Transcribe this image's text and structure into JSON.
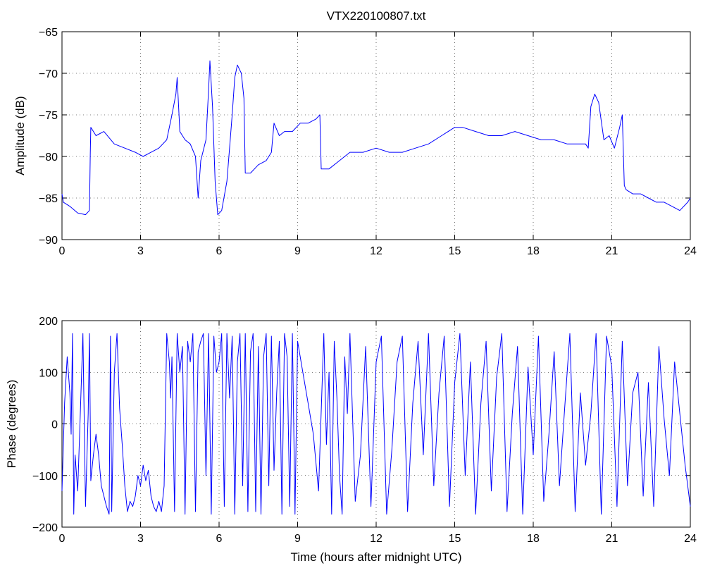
{
  "chart_data": [
    {
      "type": "line",
      "title": "VTX220100807.txt",
      "xlabel": "",
      "ylabel": "Amplitude (dB)",
      "xlim": [
        0,
        24
      ],
      "ylim": [
        -90,
        -65
      ],
      "xticks": [
        0,
        3,
        6,
        9,
        12,
        15,
        18,
        21,
        24
      ],
      "yticks": [
        -90,
        -85,
        -80,
        -75,
        -70,
        -65
      ],
      "grid": true,
      "series": [
        {
          "color": "#0000ff",
          "x": [
            0,
            0.05,
            0.3,
            0.6,
            0.9,
            1.05,
            1.08,
            1.1,
            1.3,
            1.6,
            2.0,
            2.4,
            2.8,
            3.1,
            3.4,
            3.7,
            4.0,
            4.2,
            4.35,
            4.4,
            4.5,
            4.7,
            4.9,
            5.1,
            5.2,
            5.3,
            5.5,
            5.6,
            5.65,
            5.75,
            5.85,
            5.95,
            6.1,
            6.3,
            6.4,
            6.5,
            6.6,
            6.7,
            6.85,
            6.95,
            7.0,
            7.2,
            7.5,
            7.8,
            8.0,
            8.1,
            8.3,
            8.5,
            8.8,
            9.1,
            9.4,
            9.7,
            9.85,
            9.9,
            10.2,
            10.6,
            11.0,
            11.5,
            12.0,
            12.5,
            13.0,
            13.5,
            14.0,
            14.5,
            15.0,
            15.3,
            15.8,
            16.3,
            16.8,
            17.3,
            17.8,
            18.3,
            18.8,
            19.3,
            19.8,
            20.0,
            20.1,
            20.2,
            20.35,
            20.5,
            20.7,
            20.9,
            21.1,
            21.3,
            21.4,
            21.48,
            21.55,
            21.8,
            22.1,
            22.4,
            22.7,
            23.0,
            23.3,
            23.6,
            23.9,
            24.0
          ],
          "y": [
            -84.5,
            -85.5,
            -86.0,
            -86.8,
            -87.0,
            -86.5,
            -80.0,
            -76.5,
            -77.5,
            -77.0,
            -78.5,
            -79.0,
            -79.5,
            -80.0,
            -79.5,
            -79.0,
            -78.0,
            -75.0,
            -72.5,
            -70.5,
            -77.0,
            -78.0,
            -78.5,
            -80.0,
            -85.0,
            -80.5,
            -78.0,
            -72.0,
            -68.5,
            -74.0,
            -83.0,
            -87.0,
            -86.5,
            -83.0,
            -79.0,
            -75.0,
            -70.5,
            -69.0,
            -70.0,
            -73.0,
            -82.0,
            -82.0,
            -81.0,
            -80.5,
            -79.5,
            -76.0,
            -77.5,
            -77.0,
            -77.0,
            -76.0,
            -76.0,
            -75.5,
            -75.0,
            -81.5,
            -81.5,
            -80.5,
            -79.5,
            -79.5,
            -79.0,
            -79.5,
            -79.5,
            -79.0,
            -78.5,
            -77.5,
            -76.5,
            -76.5,
            -77.0,
            -77.5,
            -77.5,
            -77.0,
            -77.5,
            -78.0,
            -78.0,
            -78.5,
            -78.5,
            -78.5,
            -79.0,
            -74.0,
            -72.5,
            -73.5,
            -78.0,
            -77.5,
            -79.0,
            -76.5,
            -75.0,
            -83.5,
            -84.0,
            -84.5,
            -84.5,
            -85.0,
            -85.5,
            -85.5,
            -86.0,
            -86.5,
            -85.5,
            -85.0
          ]
        }
      ]
    },
    {
      "type": "line",
      "title": "",
      "xlabel": "Time (hours after midnight UTC)",
      "ylabel": "Phase (degrees)",
      "xlim": [
        0,
        24
      ],
      "ylim": [
        -200,
        200
      ],
      "xticks": [
        0,
        3,
        6,
        9,
        12,
        15,
        18,
        21,
        24
      ],
      "yticks": [
        -200,
        -100,
        0,
        100,
        200
      ],
      "grid": true,
      "series": [
        {
          "color": "#0000ff",
          "x": [
            0,
            0.1,
            0.2,
            0.3,
            0.35,
            0.4,
            0.45,
            0.5,
            0.6,
            0.7,
            0.8,
            0.9,
            1.0,
            1.05,
            1.1,
            1.2,
            1.3,
            1.4,
            1.5,
            1.6,
            1.7,
            1.8,
            1.85,
            1.9,
            2.0,
            2.1,
            2.2,
            2.3,
            2.4,
            2.5,
            2.6,
            2.7,
            2.8,
            2.9,
            3.0,
            3.1,
            3.2,
            3.3,
            3.4,
            3.5,
            3.6,
            3.7,
            3.8,
            3.9,
            4.0,
            4.1,
            4.15,
            4.2,
            4.3,
            4.4,
            4.5,
            4.6,
            4.7,
            4.8,
            4.9,
            5.0,
            5.1,
            5.2,
            5.3,
            5.4,
            5.5,
            5.6,
            5.7,
            5.8,
            5.9,
            6.0,
            6.1,
            6.2,
            6.3,
            6.4,
            6.5,
            6.6,
            6.7,
            6.8,
            6.9,
            7.0,
            7.1,
            7.2,
            7.3,
            7.4,
            7.5,
            7.6,
            7.7,
            7.8,
            7.9,
            8.0,
            8.1,
            8.2,
            8.3,
            8.4,
            8.5,
            8.6,
            8.7,
            8.8,
            8.9,
            9.0,
            9.2,
            9.4,
            9.6,
            9.8,
            10.0,
            10.1,
            10.2,
            10.3,
            10.4,
            10.5,
            10.6,
            10.7,
            10.8,
            10.9,
            11.0,
            11.2,
            11.4,
            11.6,
            11.8,
            12.0,
            12.2,
            12.4,
            12.6,
            12.8,
            13.0,
            13.2,
            13.4,
            13.6,
            13.8,
            14.0,
            14.2,
            14.4,
            14.6,
            14.8,
            15.0,
            15.2,
            15.4,
            15.6,
            15.8,
            16.0,
            16.2,
            16.4,
            16.6,
            16.8,
            17.0,
            17.2,
            17.4,
            17.6,
            17.8,
            18.0,
            18.2,
            18.4,
            18.6,
            18.8,
            19.0,
            19.2,
            19.4,
            19.6,
            19.8,
            20.0,
            20.2,
            20.4,
            20.6,
            20.8,
            21.0,
            21.2,
            21.4,
            21.6,
            21.8,
            22.0,
            22.2,
            22.4,
            22.6,
            22.8,
            23.0,
            23.2,
            23.4,
            23.6,
            23.8,
            24.0
          ],
          "y": [
            -130,
            40,
            130,
            60,
            -20,
            175,
            -175,
            -60,
            -130,
            20,
            175,
            -160,
            20,
            175,
            -110,
            -60,
            -20,
            -60,
            -120,
            -140,
            -160,
            -175,
            170,
            -170,
            100,
            175,
            30,
            -40,
            -120,
            -170,
            -150,
            -160,
            -140,
            -100,
            -120,
            -80,
            -110,
            -90,
            -140,
            -160,
            -170,
            -150,
            -170,
            -120,
            175,
            120,
            50,
            130,
            -170,
            175,
            100,
            150,
            -175,
            160,
            120,
            175,
            -170,
            140,
            160,
            175,
            -100,
            175,
            -175,
            170,
            100,
            120,
            175,
            -160,
            175,
            50,
            170,
            -175,
            120,
            175,
            -120,
            175,
            -170,
            140,
            175,
            -170,
            150,
            -175,
            130,
            175,
            -120,
            170,
            -90,
            60,
            160,
            -175,
            175,
            130,
            -160,
            175,
            -175,
            160,
            100,
            40,
            -20,
            -130,
            175,
            -40,
            100,
            -175,
            160,
            50,
            -100,
            -175,
            130,
            20,
            175,
            -150,
            -60,
            150,
            -160,
            120,
            170,
            -175,
            -50,
            120,
            170,
            -170,
            40,
            160,
            -60,
            175,
            -120,
            60,
            170,
            -160,
            80,
            175,
            -100,
            120,
            -175,
            40,
            160,
            -130,
            90,
            175,
            -170,
            20,
            150,
            -175,
            110,
            -60,
            170,
            -150,
            -20,
            140,
            -120,
            30,
            175,
            -170,
            60,
            -80,
            20,
            175,
            -175,
            170,
            110,
            -160,
            160,
            -120,
            60,
            100,
            -140,
            80,
            -160,
            150,
            10,
            -100,
            120,
            20,
            -80,
            -160
          ]
        }
      ]
    }
  ]
}
